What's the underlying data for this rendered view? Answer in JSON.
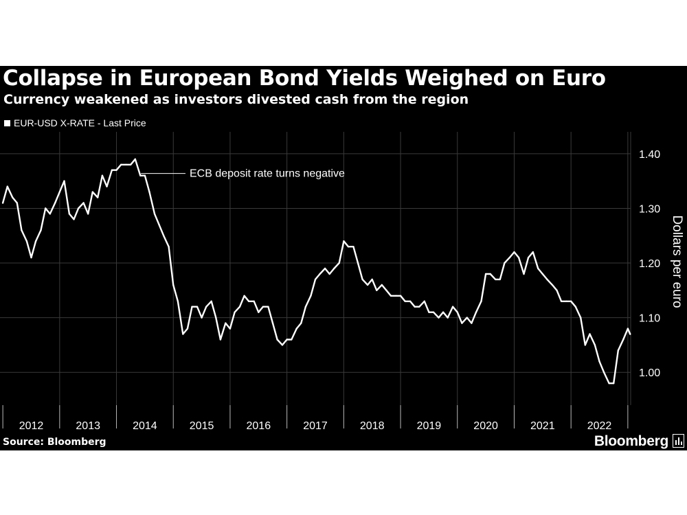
{
  "title": "Collapse in European Bond Yields Weighed on Euro",
  "subtitle": "Currency weakened as investors divested cash from the region",
  "legend": "EUR-USD X-RATE - Last Price",
  "source": "Source: Bloomberg",
  "brand": "Bloomberg",
  "colors": {
    "background": "#000000",
    "line": "#ffffff",
    "grid": "#3a3a3a"
  },
  "chart_data": {
    "type": "line",
    "title": "Collapse in European Bond Yields Weighed on Euro",
    "subtitle": "Currency weakened as investors divested cash from the region",
    "ylabel": "Dollars per euro",
    "xlabel": "",
    "ylim": [
      0.94,
      1.44
    ],
    "yticks": [
      1.0,
      1.1,
      1.2,
      1.3,
      1.4
    ],
    "ytick_labels": [
      "1.00",
      "1.10",
      "1.20",
      "1.30",
      "1.40"
    ],
    "xlim": [
      2011.95,
      2023.05
    ],
    "year_labels": [
      "2012",
      "2013",
      "2014",
      "2015",
      "2016",
      "2017",
      "2018",
      "2019",
      "2020",
      "2021",
      "2022"
    ],
    "grid": true,
    "legend_position": "top-left",
    "annotation": {
      "text": "ECB deposit rate turns negative",
      "x": 2014.43,
      "y": 1.36
    },
    "series": [
      {
        "name": "EUR-USD X-RATE - Last Price",
        "x": [
          2012.0,
          2012.08,
          2012.17,
          2012.25,
          2012.33,
          2012.42,
          2012.5,
          2012.58,
          2012.67,
          2012.75,
          2012.83,
          2012.92,
          2013.0,
          2013.08,
          2013.17,
          2013.25,
          2013.33,
          2013.42,
          2013.5,
          2013.58,
          2013.67,
          2013.75,
          2013.83,
          2013.92,
          2014.0,
          2014.08,
          2014.17,
          2014.25,
          2014.33,
          2014.42,
          2014.5,
          2014.58,
          2014.67,
          2014.75,
          2014.83,
          2014.92,
          2015.0,
          2015.08,
          2015.17,
          2015.25,
          2015.33,
          2015.42,
          2015.5,
          2015.58,
          2015.67,
          2015.75,
          2015.83,
          2015.92,
          2016.0,
          2016.08,
          2016.17,
          2016.25,
          2016.33,
          2016.42,
          2016.5,
          2016.58,
          2016.67,
          2016.75,
          2016.83,
          2016.92,
          2017.0,
          2017.08,
          2017.17,
          2017.25,
          2017.33,
          2017.42,
          2017.5,
          2017.58,
          2017.67,
          2017.75,
          2017.83,
          2017.92,
          2018.0,
          2018.08,
          2018.17,
          2018.25,
          2018.33,
          2018.42,
          2018.5,
          2018.58,
          2018.67,
          2018.75,
          2018.83,
          2018.92,
          2019.0,
          2019.08,
          2019.17,
          2019.25,
          2019.33,
          2019.42,
          2019.5,
          2019.58,
          2019.67,
          2019.75,
          2019.83,
          2019.92,
          2020.0,
          2020.08,
          2020.17,
          2020.25,
          2020.33,
          2020.42,
          2020.5,
          2020.58,
          2020.67,
          2020.75,
          2020.83,
          2020.92,
          2021.0,
          2021.08,
          2021.17,
          2021.25,
          2021.33,
          2021.42,
          2021.5,
          2021.58,
          2021.67,
          2021.75,
          2021.83,
          2021.92,
          2022.0,
          2022.08,
          2022.17,
          2022.25,
          2022.33,
          2022.42,
          2022.5,
          2022.58,
          2022.67,
          2022.75,
          2022.83,
          2022.92,
          2023.0,
          2023.04
        ],
        "y": [
          1.31,
          1.34,
          1.32,
          1.31,
          1.26,
          1.24,
          1.21,
          1.24,
          1.26,
          1.3,
          1.29,
          1.31,
          1.33,
          1.35,
          1.29,
          1.28,
          1.3,
          1.31,
          1.29,
          1.33,
          1.32,
          1.36,
          1.34,
          1.37,
          1.37,
          1.38,
          1.38,
          1.38,
          1.39,
          1.36,
          1.36,
          1.33,
          1.29,
          1.27,
          1.25,
          1.23,
          1.16,
          1.13,
          1.07,
          1.08,
          1.12,
          1.12,
          1.1,
          1.12,
          1.13,
          1.1,
          1.06,
          1.09,
          1.08,
          1.11,
          1.12,
          1.14,
          1.13,
          1.13,
          1.11,
          1.12,
          1.12,
          1.09,
          1.06,
          1.05,
          1.06,
          1.06,
          1.08,
          1.09,
          1.12,
          1.14,
          1.17,
          1.18,
          1.19,
          1.18,
          1.19,
          1.2,
          1.24,
          1.23,
          1.23,
          1.2,
          1.17,
          1.16,
          1.17,
          1.15,
          1.16,
          1.15,
          1.14,
          1.14,
          1.14,
          1.13,
          1.13,
          1.12,
          1.12,
          1.13,
          1.11,
          1.11,
          1.1,
          1.11,
          1.1,
          1.12,
          1.11,
          1.09,
          1.1,
          1.09,
          1.11,
          1.13,
          1.18,
          1.18,
          1.17,
          1.17,
          1.2,
          1.21,
          1.22,
          1.21,
          1.18,
          1.21,
          1.22,
          1.19,
          1.18,
          1.17,
          1.16,
          1.15,
          1.13,
          1.13,
          1.13,
          1.12,
          1.1,
          1.05,
          1.07,
          1.05,
          1.02,
          1.0,
          0.98,
          0.98,
          1.04,
          1.06,
          1.08,
          1.07
        ]
      }
    ]
  }
}
